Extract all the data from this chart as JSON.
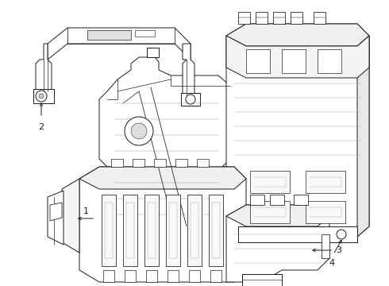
{
  "background_color": "#ffffff",
  "line_color": "#1a1a1a",
  "line_width": 0.7,
  "figsize": [
    4.9,
    3.6
  ],
  "dpi": 100
}
